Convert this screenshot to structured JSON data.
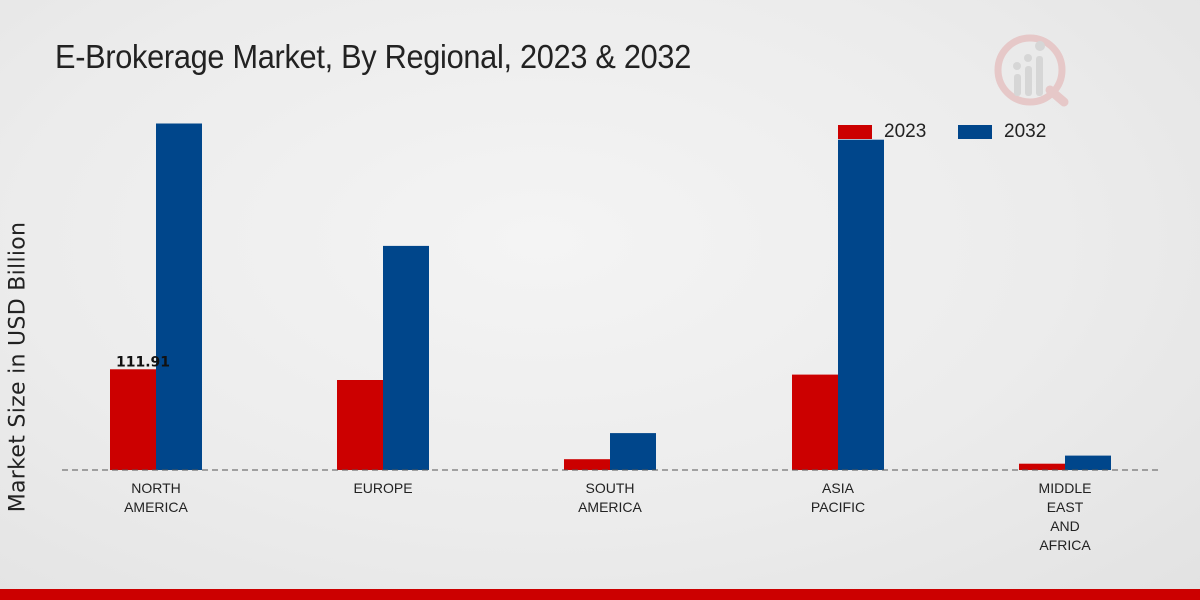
{
  "chart_data": {
    "type": "bar",
    "title": "E-Brokerage Market, By Regional, 2023 & 2032",
    "xlabel": "",
    "ylabel": "Market Size in USD Billion",
    "categories": [
      "NORTH\nAMERICA",
      "EUROPE",
      "SOUTH\nAMERICA",
      "ASIA\nPACIFIC",
      "MIDDLE\nEAST\nAND\nAFRICA"
    ],
    "series": [
      {
        "name": "2023",
        "color": "#cc0000",
        "values": [
          111.91,
          100.0,
          12.0,
          106.0,
          7.0
        ]
      },
      {
        "name": "2032",
        "color": "#00468b",
        "values": [
          385.0,
          249.0,
          41.0,
          367.0,
          16.0
        ]
      }
    ],
    "data_labels": [
      {
        "series": 0,
        "index": 0,
        "text": "111.91"
      }
    ],
    "ylim": [
      0,
      500
    ],
    "grid": false,
    "legend_position": "top-right"
  }
}
